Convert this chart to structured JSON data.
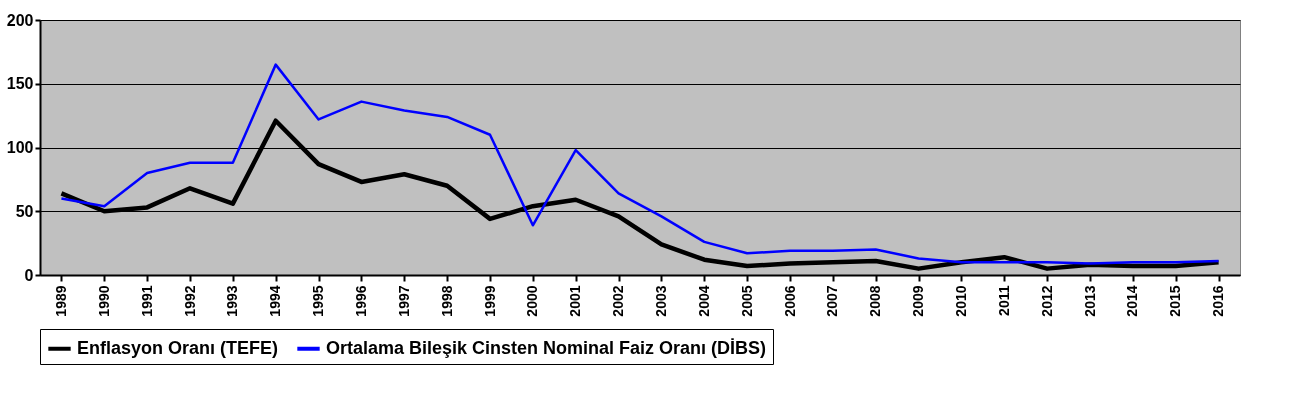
{
  "chart_data": {
    "type": "line",
    "categories": [
      "1989",
      "1990",
      "1991",
      "1992",
      "1993",
      "1994",
      "1995",
      "1996",
      "1997",
      "1998",
      "1999",
      "2000",
      "2001",
      "2002",
      "2003",
      "2004",
      "2005",
      "2006",
      "2007",
      "2008",
      "2009",
      "2010",
      "2011",
      "2012",
      "2013",
      "2014",
      "2015",
      "2016"
    ],
    "series": [
      {
        "name": "Enflasyon Oranı (TEFE)",
        "color": "#000000",
        "values": [
          64,
          50,
          53,
          68,
          56,
          121,
          87,
          73,
          79,
          70,
          44,
          54,
          59,
          46,
          24,
          12,
          7,
          9,
          10,
          11,
          5,
          10,
          14,
          5,
          8,
          7,
          7,
          10
        ]
      },
      {
        "name": "Ortalama Bileşik Cinsten Nominal Faiz Oranı (DİBS)",
        "color": "#0000ff",
        "values": [
          60,
          54,
          80,
          88,
          88,
          165,
          122,
          136,
          129,
          124,
          110,
          39,
          98,
          64,
          46,
          26,
          17,
          19,
          19,
          20,
          13,
          10,
          10,
          10,
          9,
          10,
          10,
          11
        ]
      }
    ],
    "ylim": [
      0,
      200
    ],
    "yticks": [
      0,
      50,
      100,
      150,
      200
    ],
    "grid": "y",
    "legend": "bottom"
  }
}
